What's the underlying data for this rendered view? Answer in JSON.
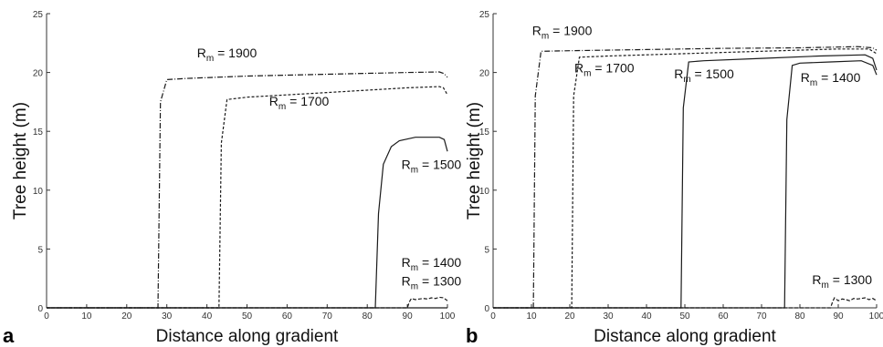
{
  "chart_data": [
    {
      "panel": "a",
      "type": "line",
      "xlabel": "Distance along gradient",
      "ylabel": "Tree height (m)",
      "xlim": [
        0,
        100
      ],
      "ylim": [
        0,
        25
      ],
      "xticks": [
        0,
        10,
        20,
        30,
        40,
        50,
        60,
        70,
        80,
        90,
        100
      ],
      "yticks": [
        0,
        5,
        10,
        15,
        20,
        25
      ],
      "series": [
        {
          "name": "R_m = 1900",
          "label_base": "R",
          "label_sub": "m",
          "label_rest": " = 1900",
          "dash": "6,2,1,2",
          "x": [
            0,
            27.8,
            28.4,
            30,
            35,
            50,
            70,
            90,
            98,
            99.2,
            100
          ],
          "y": [
            0,
            0,
            17.5,
            19.4,
            19.5,
            19.7,
            19.85,
            20.0,
            20.05,
            19.9,
            19.6
          ]
        },
        {
          "name": "R_m = 1700",
          "label_base": "R",
          "label_sub": "m",
          "label_rest": " = 1700",
          "dash": "3,2",
          "x": [
            0,
            43,
            43.6,
            45,
            50,
            70,
            90,
            98,
            99,
            100
          ],
          "y": [
            0,
            0,
            14,
            17.7,
            17.9,
            18.3,
            18.7,
            18.8,
            18.7,
            18.1
          ]
        },
        {
          "name": "R_m = 1500",
          "label_base": "R",
          "label_sub": "m",
          "label_rest": " = 1500",
          "dash": "",
          "x": [
            0,
            82,
            82.8,
            84,
            86,
            88,
            92,
            96,
            98,
            99.2,
            100
          ],
          "y": [
            0,
            0,
            8,
            12.2,
            13.7,
            14.2,
            14.5,
            14.5,
            14.5,
            14.3,
            13.3
          ]
        },
        {
          "name": "R_m = 1400",
          "label_base": "R",
          "label_sub": "m",
          "label_rest": " = 1400",
          "dash": "",
          "x": [
            0,
            100
          ],
          "y": [
            0,
            0
          ]
        },
        {
          "name": "R_m = 1300",
          "label_base": "R",
          "label_sub": "m",
          "label_rest": " = 1300",
          "dash": "4,2",
          "x": [
            0,
            90,
            90.5,
            91,
            92,
            93,
            94,
            95,
            96,
            97,
            98,
            99,
            100
          ],
          "y": [
            0,
            0,
            0.5,
            0.8,
            0.7,
            0.75,
            0.8,
            0.75,
            0.85,
            0.8,
            0.9,
            0.85,
            0.6
          ]
        }
      ],
      "annotations": [
        {
          "series": 0,
          "x": 45,
          "y": 21.3
        },
        {
          "series": 1,
          "x": 63,
          "y": 17.2
        },
        {
          "series": 2,
          "x": 96,
          "y": 11.8
        },
        {
          "series": 3,
          "x": 96,
          "y": 3.5
        },
        {
          "series": 4,
          "x": 96,
          "y": 1.9
        }
      ]
    },
    {
      "panel": "b",
      "type": "line",
      "xlabel": "Distance along gradient",
      "ylabel": "Tree height (m)",
      "xlim": [
        0,
        100
      ],
      "ylim": [
        0,
        25
      ],
      "xticks": [
        0,
        10,
        20,
        30,
        40,
        50,
        60,
        70,
        80,
        90,
        100
      ],
      "yticks": [
        0,
        5,
        10,
        15,
        20,
        25
      ],
      "series": [
        {
          "name": "R_m = 1900",
          "label_base": "R",
          "label_sub": "m",
          "label_rest": " = 1900",
          "dash": "6,2,1,2",
          "x": [
            0,
            10.5,
            11,
            12.5,
            20,
            40,
            60,
            80,
            95,
            99,
            100
          ],
          "y": [
            0,
            0,
            18,
            21.8,
            21.85,
            21.95,
            22.05,
            22.1,
            22.2,
            22.1,
            21.9
          ]
        },
        {
          "name": "R_m = 1700",
          "label_base": "R",
          "label_sub": "m",
          "label_rest": " = 1700",
          "dash": "3,2",
          "x": [
            0,
            20.5,
            21,
            22.5,
            30,
            50,
            70,
            90,
            98,
            100
          ],
          "y": [
            0,
            0,
            18,
            21.3,
            21.4,
            21.6,
            21.8,
            22.0,
            22.0,
            21.6
          ]
        },
        {
          "name": "R_m = 1500",
          "label_base": "R",
          "label_sub": "m",
          "label_rest": " = 1500",
          "dash": "",
          "x": [
            0,
            49,
            49.6,
            51,
            55,
            70,
            85,
            97,
            99,
            100
          ],
          "y": [
            0,
            0,
            17,
            20.9,
            21.0,
            21.2,
            21.4,
            21.5,
            21.2,
            20.2
          ]
        },
        {
          "name": "R_m = 1400",
          "label_base": "R",
          "label_sub": "m",
          "label_rest": " = 1400",
          "dash": "",
          "x": [
            0,
            76,
            76.6,
            78,
            80,
            88,
            96,
            99,
            100
          ],
          "y": [
            0,
            0,
            16,
            20.6,
            20.8,
            20.9,
            21.0,
            20.6,
            19.8
          ]
        },
        {
          "name": "R_m = 1300",
          "label_base": "R",
          "label_sub": "m",
          "label_rest": " = 1300",
          "dash": "4,2",
          "x": [
            0,
            88,
            88.5,
            89,
            90,
            91,
            92,
            93,
            94,
            95,
            96,
            97,
            98,
            99,
            100
          ],
          "y": [
            0,
            0,
            0.5,
            0.85,
            0.6,
            0.75,
            0.7,
            0.6,
            0.8,
            0.75,
            0.8,
            0.85,
            0.7,
            0.8,
            0.6
          ]
        }
      ],
      "annotations": [
        {
          "series": 0,
          "x": 18,
          "y": 23.2
        },
        {
          "series": 1,
          "x": 29,
          "y": 20.0
        },
        {
          "series": 2,
          "x": 55,
          "y": 19.5
        },
        {
          "series": 3,
          "x": 88,
          "y": 19.2
        },
        {
          "series": 4,
          "x": 91,
          "y": 2.0
        }
      ]
    }
  ]
}
